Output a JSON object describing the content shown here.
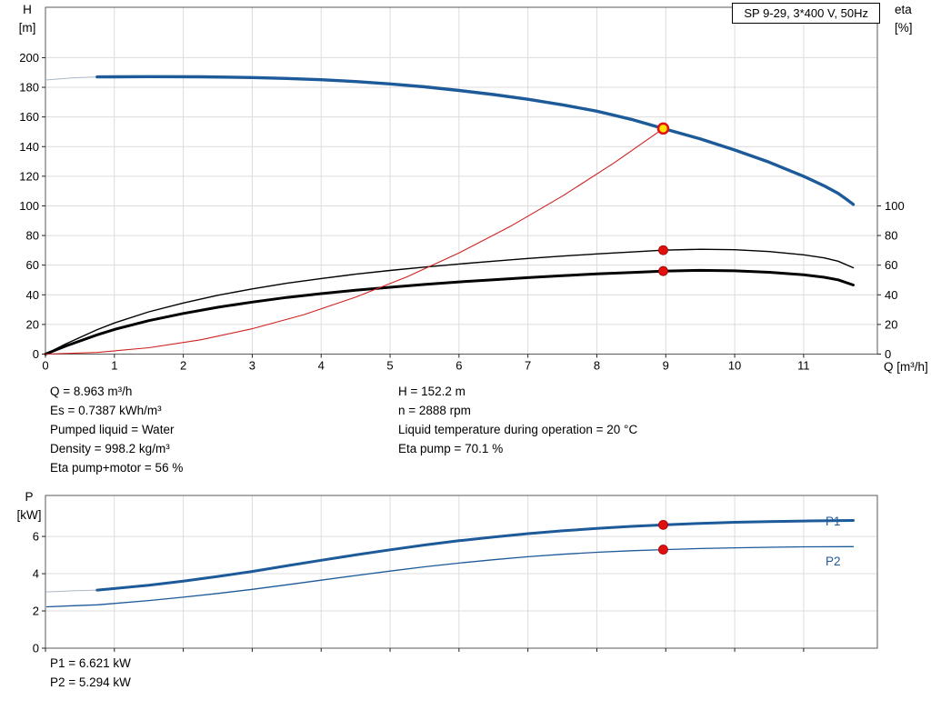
{
  "title_box": "SP 9-29, 3*400 V, 50Hz",
  "axis_labels": {
    "h_top": "H",
    "h_unit": "[m]",
    "eta_top": "eta",
    "eta_unit": "[%]",
    "q": "Q [m³/h]",
    "p_top": "P",
    "p_unit": "[kW]"
  },
  "info": {
    "left": [
      "Q = 8.963 m³/h",
      "Es = 0.7387 kWh/m³",
      "Pumped liquid = Water",
      "Density = 998.2 kg/m³",
      "Eta pump+motor = 56 %"
    ],
    "right": [
      "H = 152.2 m",
      "n = 2888 rpm",
      "Liquid temperature during operation = 20 °C",
      "Eta pump = 70.1 %"
    ]
  },
  "power_info": [
    "P1 = 6.621 kW",
    "P2 = 5.294 kW"
  ],
  "curve_labels": {
    "p1": "P1",
    "p2": "P2"
  },
  "colors": {
    "grid": "#dcdcdc",
    "frame": "#5a5a5a",
    "tick": "#222222",
    "curve_blue": "#1d5a99",
    "curve_red": "#d02020",
    "curve_black": "#000000",
    "lead_in": "#a9b6c6",
    "marker_red": "#e01010",
    "marker_red_edge": "#a00000",
    "marker_yellow": "#ffe000"
  },
  "chart_data": [
    {
      "type": "line",
      "name": "hq-eta-chart",
      "title": "SP 9-29, 3*400 V, 50Hz",
      "xlabel": "Q [m³/h]",
      "ylabel": "H [m]",
      "ylabel_right": "eta [%]",
      "xlim": [
        0,
        12.07
      ],
      "ylim": [
        0,
        234
      ],
      "ylim_right": [
        0,
        234
      ],
      "x_ticks": [
        0,
        1,
        2,
        3,
        4,
        5,
        6,
        7,
        8,
        9,
        10,
        11
      ],
      "y_ticks": [
        0,
        20,
        40,
        60,
        80,
        100,
        120,
        140,
        160,
        180,
        200
      ],
      "y_ticks_right": [
        0,
        20,
        40,
        60,
        80,
        100
      ],
      "show_x_labels": true,
      "grid": true,
      "series": [
        {
          "name": "h-curve-lead-in",
          "color": "#a9b6c6",
          "width": 1,
          "axis": "left",
          "points": [
            [
              0.02,
              185
            ],
            [
              0.4,
              186.4
            ],
            [
              0.75,
              187
            ]
          ]
        },
        {
          "name": "eta-pump-curve",
          "color": "#000000",
          "width": 1.4,
          "axis": "right",
          "points": [
            [
              0,
              0
            ],
            [
              0.3,
              7
            ],
            [
              0.75,
              16.5
            ],
            [
              1,
              21
            ],
            [
              1.5,
              28.5
            ],
            [
              2,
              34.5
            ],
            [
              2.5,
              39.7
            ],
            [
              3,
              44
            ],
            [
              3.5,
              47.8
            ],
            [
              4,
              51
            ],
            [
              4.5,
              53.9
            ],
            [
              5,
              56.4
            ],
            [
              5.5,
              58.7
            ],
            [
              6,
              60.8
            ],
            [
              6.5,
              62.7
            ],
            [
              7,
              64.5
            ],
            [
              7.5,
              66.1
            ],
            [
              8,
              67.6
            ],
            [
              8.5,
              68.9
            ],
            [
              8.963,
              70.1
            ],
            [
              9.5,
              70.7
            ],
            [
              10,
              70.4
            ],
            [
              10.5,
              69.2
            ],
            [
              11,
              67
            ],
            [
              11.3,
              64.9
            ],
            [
              11.5,
              62.7
            ],
            [
              11.72,
              58.3
            ]
          ]
        },
        {
          "name": "eta-pump-motor-curve",
          "color": "#000000",
          "width": 3,
          "axis": "right",
          "points": [
            [
              0,
              0
            ],
            [
              0.3,
              5.5
            ],
            [
              0.75,
              13
            ],
            [
              1,
              16.6
            ],
            [
              1.5,
              22.6
            ],
            [
              2,
              27.4
            ],
            [
              2.5,
              31.6
            ],
            [
              3,
              35.1
            ],
            [
              3.5,
              38.2
            ],
            [
              4,
              40.8
            ],
            [
              4.5,
              43.1
            ],
            [
              5,
              45.1
            ],
            [
              5.5,
              47
            ],
            [
              6,
              48.7
            ],
            [
              6.5,
              50.2
            ],
            [
              7,
              51.6
            ],
            [
              7.5,
              52.9
            ],
            [
              8,
              54.1
            ],
            [
              8.5,
              55.1
            ],
            [
              8.963,
              56
            ],
            [
              9.5,
              56.5
            ],
            [
              10,
              56.2
            ],
            [
              10.5,
              55.2
            ],
            [
              11,
              53.5
            ],
            [
              11.3,
              51.8
            ],
            [
              11.5,
              50.1
            ],
            [
              11.72,
              46.6
            ]
          ]
        },
        {
          "name": "system-curve",
          "color": "#d02020",
          "width": 1.1,
          "axis": "left",
          "points": [
            [
              0,
              0
            ],
            [
              0.75,
              1.1
            ],
            [
              1.5,
              4.3
            ],
            [
              2.25,
              9.6
            ],
            [
              3,
              17.1
            ],
            [
              3.75,
              26.6
            ],
            [
              4.5,
              38.4
            ],
            [
              5.25,
              52.2
            ],
            [
              6,
              68.2
            ],
            [
              6.75,
              86.3
            ],
            [
              7.5,
              106.6
            ],
            [
              8.25,
              129
            ],
            [
              8.963,
              152.2
            ]
          ]
        },
        {
          "name": "h-curve",
          "color": "#1d5a99",
          "width": 3.4,
          "axis": "left",
          "points": [
            [
              0.75,
              187
            ],
            [
              1.5,
              187.2
            ],
            [
              2.25,
              187.1
            ],
            [
              3,
              186.6
            ],
            [
              3.5,
              186
            ],
            [
              4,
              185.1
            ],
            [
              4.5,
              183.9
            ],
            [
              5,
              182.3
            ],
            [
              5.5,
              180.3
            ],
            [
              6,
              177.9
            ],
            [
              6.5,
              175.1
            ],
            [
              7,
              171.9
            ],
            [
              7.5,
              168.2
            ],
            [
              8,
              163.9
            ],
            [
              8.5,
              158.4
            ],
            [
              8.963,
              152.2
            ],
            [
              9.5,
              145.2
            ],
            [
              10,
              137.7
            ],
            [
              10.5,
              129.5
            ],
            [
              11,
              120
            ],
            [
              11.3,
              113.5
            ],
            [
              11.5,
              108.5
            ],
            [
              11.65,
              103.5
            ],
            [
              11.72,
              101
            ]
          ]
        }
      ],
      "markers": [
        {
          "name": "eta-pump-point",
          "x": 8.963,
          "y": 70.1,
          "axis": "right",
          "r": 5,
          "fill": "#e01010",
          "stroke": "#a00000",
          "sw": 0.8
        },
        {
          "name": "eta-pump-motor-point",
          "x": 8.963,
          "y": 56,
          "axis": "right",
          "r": 5,
          "fill": "#e01010",
          "stroke": "#a00000",
          "sw": 0.8
        },
        {
          "name": "duty-point",
          "x": 8.963,
          "y": 152.2,
          "axis": "left",
          "r": 5.5,
          "fill": "#ffe000",
          "stroke": "#e01010",
          "sw": 2.5
        }
      ]
    },
    {
      "type": "line",
      "name": "power-chart",
      "ylabel": "P [kW]",
      "xlim": [
        0,
        12.07
      ],
      "ylim": [
        0,
        8.2
      ],
      "x_ticks": [
        0,
        1,
        2,
        3,
        4,
        5,
        6,
        7,
        8,
        9,
        10,
        11
      ],
      "y_ticks": [
        0,
        2,
        4,
        6
      ],
      "show_x_labels": false,
      "grid": true,
      "series": [
        {
          "name": "p1-curve-lead-in",
          "color": "#a9b6c6",
          "width": 1,
          "axis": "left",
          "points": [
            [
              0.02,
              3.02
            ],
            [
              0.4,
              3.08
            ],
            [
              0.75,
              3.12
            ]
          ]
        },
        {
          "name": "p2-curve",
          "color": "#1d5a99",
          "width": 1.3,
          "axis": "left",
          "points": [
            [
              0.02,
              2.22
            ],
            [
              0.4,
              2.28
            ],
            [
              0.75,
              2.33
            ],
            [
              1,
              2.4
            ],
            [
              1.5,
              2.56
            ],
            [
              2,
              2.74
            ],
            [
              2.5,
              2.94
            ],
            [
              3,
              3.16
            ],
            [
              3.5,
              3.4
            ],
            [
              4,
              3.65
            ],
            [
              4.5,
              3.9
            ],
            [
              5,
              4.14
            ],
            [
              5.5,
              4.37
            ],
            [
              6,
              4.57
            ],
            [
              6.5,
              4.75
            ],
            [
              7,
              4.91
            ],
            [
              7.5,
              5.04
            ],
            [
              8,
              5.15
            ],
            [
              8.5,
              5.23
            ],
            [
              8.963,
              5.29
            ],
            [
              9.5,
              5.35
            ],
            [
              10,
              5.39
            ],
            [
              10.5,
              5.42
            ],
            [
              11,
              5.44
            ],
            [
              11.72,
              5.45
            ]
          ]
        },
        {
          "name": "p1-curve",
          "color": "#1d5a99",
          "width": 3,
          "axis": "left",
          "points": [
            [
              0.75,
              3.12
            ],
            [
              1,
              3.2
            ],
            [
              1.5,
              3.38
            ],
            [
              2,
              3.6
            ],
            [
              2.5,
              3.85
            ],
            [
              3,
              4.12
            ],
            [
              3.5,
              4.42
            ],
            [
              4,
              4.72
            ],
            [
              4.5,
              5.01
            ],
            [
              5,
              5.28
            ],
            [
              5.5,
              5.54
            ],
            [
              6,
              5.77
            ],
            [
              6.5,
              5.97
            ],
            [
              7,
              6.15
            ],
            [
              7.5,
              6.3
            ],
            [
              8,
              6.43
            ],
            [
              8.5,
              6.54
            ],
            [
              8.963,
              6.62
            ],
            [
              9.5,
              6.7
            ],
            [
              10,
              6.76
            ],
            [
              10.5,
              6.8
            ],
            [
              11,
              6.83
            ],
            [
              11.4,
              6.85
            ],
            [
              11.72,
              6.86
            ]
          ]
        }
      ],
      "markers": [
        {
          "name": "p1-point",
          "x": 8.963,
          "y": 6.621,
          "axis": "left",
          "r": 5,
          "fill": "#e01010",
          "stroke": "#a00000",
          "sw": 0.8
        },
        {
          "name": "p2-point",
          "x": 8.963,
          "y": 5.294,
          "axis": "left",
          "r": 5,
          "fill": "#e01010",
          "stroke": "#a00000",
          "sw": 0.8
        }
      ]
    }
  ]
}
